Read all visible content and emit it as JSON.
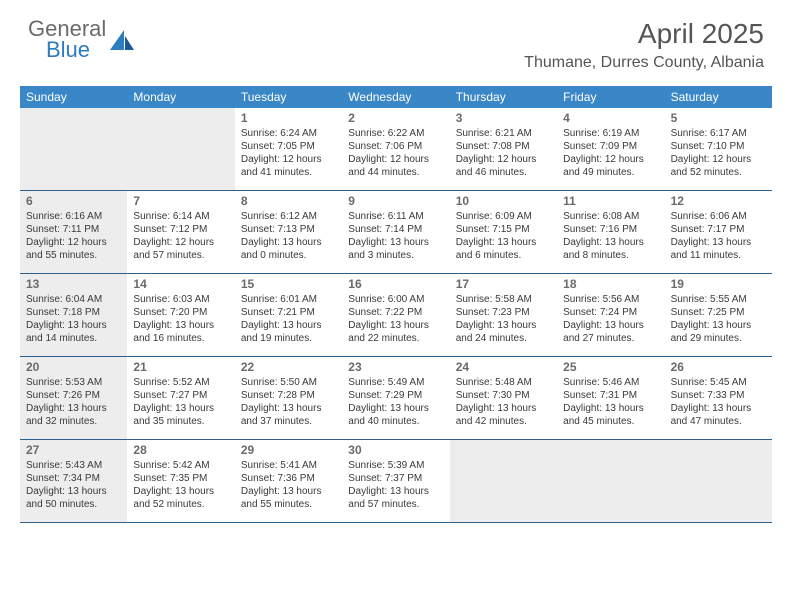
{
  "brand": {
    "general": "General",
    "blue": "Blue"
  },
  "title": "April 2025",
  "location": "Thumane, Durres County, Albania",
  "header_bg": "#3a87c8",
  "rule_color": "#2d5f8e",
  "shaded_bg": "#ededed",
  "weekdays": [
    "Sunday",
    "Monday",
    "Tuesday",
    "Wednesday",
    "Thursday",
    "Friday",
    "Saturday"
  ],
  "weeks": [
    [
      {
        "day": "",
        "shaded": true
      },
      {
        "day": "",
        "shaded": true
      },
      {
        "day": "1",
        "sunrise": "Sunrise: 6:24 AM",
        "sunset": "Sunset: 7:05 PM",
        "d1": "Daylight: 12 hours",
        "d2": "and 41 minutes."
      },
      {
        "day": "2",
        "sunrise": "Sunrise: 6:22 AM",
        "sunset": "Sunset: 7:06 PM",
        "d1": "Daylight: 12 hours",
        "d2": "and 44 minutes."
      },
      {
        "day": "3",
        "sunrise": "Sunrise: 6:21 AM",
        "sunset": "Sunset: 7:08 PM",
        "d1": "Daylight: 12 hours",
        "d2": "and 46 minutes."
      },
      {
        "day": "4",
        "sunrise": "Sunrise: 6:19 AM",
        "sunset": "Sunset: 7:09 PM",
        "d1": "Daylight: 12 hours",
        "d2": "and 49 minutes."
      },
      {
        "day": "5",
        "sunrise": "Sunrise: 6:17 AM",
        "sunset": "Sunset: 7:10 PM",
        "d1": "Daylight: 12 hours",
        "d2": "and 52 minutes."
      }
    ],
    [
      {
        "day": "6",
        "shaded": true,
        "sunrise": "Sunrise: 6:16 AM",
        "sunset": "Sunset: 7:11 PM",
        "d1": "Daylight: 12 hours",
        "d2": "and 55 minutes."
      },
      {
        "day": "7",
        "sunrise": "Sunrise: 6:14 AM",
        "sunset": "Sunset: 7:12 PM",
        "d1": "Daylight: 12 hours",
        "d2": "and 57 minutes."
      },
      {
        "day": "8",
        "sunrise": "Sunrise: 6:12 AM",
        "sunset": "Sunset: 7:13 PM",
        "d1": "Daylight: 13 hours",
        "d2": "and 0 minutes."
      },
      {
        "day": "9",
        "sunrise": "Sunrise: 6:11 AM",
        "sunset": "Sunset: 7:14 PM",
        "d1": "Daylight: 13 hours",
        "d2": "and 3 minutes."
      },
      {
        "day": "10",
        "sunrise": "Sunrise: 6:09 AM",
        "sunset": "Sunset: 7:15 PM",
        "d1": "Daylight: 13 hours",
        "d2": "and 6 minutes."
      },
      {
        "day": "11",
        "sunrise": "Sunrise: 6:08 AM",
        "sunset": "Sunset: 7:16 PM",
        "d1": "Daylight: 13 hours",
        "d2": "and 8 minutes."
      },
      {
        "day": "12",
        "sunrise": "Sunrise: 6:06 AM",
        "sunset": "Sunset: 7:17 PM",
        "d1": "Daylight: 13 hours",
        "d2": "and 11 minutes."
      }
    ],
    [
      {
        "day": "13",
        "shaded": true,
        "sunrise": "Sunrise: 6:04 AM",
        "sunset": "Sunset: 7:18 PM",
        "d1": "Daylight: 13 hours",
        "d2": "and 14 minutes."
      },
      {
        "day": "14",
        "sunrise": "Sunrise: 6:03 AM",
        "sunset": "Sunset: 7:20 PM",
        "d1": "Daylight: 13 hours",
        "d2": "and 16 minutes."
      },
      {
        "day": "15",
        "sunrise": "Sunrise: 6:01 AM",
        "sunset": "Sunset: 7:21 PM",
        "d1": "Daylight: 13 hours",
        "d2": "and 19 minutes."
      },
      {
        "day": "16",
        "sunrise": "Sunrise: 6:00 AM",
        "sunset": "Sunset: 7:22 PM",
        "d1": "Daylight: 13 hours",
        "d2": "and 22 minutes."
      },
      {
        "day": "17",
        "sunrise": "Sunrise: 5:58 AM",
        "sunset": "Sunset: 7:23 PM",
        "d1": "Daylight: 13 hours",
        "d2": "and 24 minutes."
      },
      {
        "day": "18",
        "sunrise": "Sunrise: 5:56 AM",
        "sunset": "Sunset: 7:24 PM",
        "d1": "Daylight: 13 hours",
        "d2": "and 27 minutes."
      },
      {
        "day": "19",
        "sunrise": "Sunrise: 5:55 AM",
        "sunset": "Sunset: 7:25 PM",
        "d1": "Daylight: 13 hours",
        "d2": "and 29 minutes."
      }
    ],
    [
      {
        "day": "20",
        "shaded": true,
        "sunrise": "Sunrise: 5:53 AM",
        "sunset": "Sunset: 7:26 PM",
        "d1": "Daylight: 13 hours",
        "d2": "and 32 minutes."
      },
      {
        "day": "21",
        "sunrise": "Sunrise: 5:52 AM",
        "sunset": "Sunset: 7:27 PM",
        "d1": "Daylight: 13 hours",
        "d2": "and 35 minutes."
      },
      {
        "day": "22",
        "sunrise": "Sunrise: 5:50 AM",
        "sunset": "Sunset: 7:28 PM",
        "d1": "Daylight: 13 hours",
        "d2": "and 37 minutes."
      },
      {
        "day": "23",
        "sunrise": "Sunrise: 5:49 AM",
        "sunset": "Sunset: 7:29 PM",
        "d1": "Daylight: 13 hours",
        "d2": "and 40 minutes."
      },
      {
        "day": "24",
        "sunrise": "Sunrise: 5:48 AM",
        "sunset": "Sunset: 7:30 PM",
        "d1": "Daylight: 13 hours",
        "d2": "and 42 minutes."
      },
      {
        "day": "25",
        "sunrise": "Sunrise: 5:46 AM",
        "sunset": "Sunset: 7:31 PM",
        "d1": "Daylight: 13 hours",
        "d2": "and 45 minutes."
      },
      {
        "day": "26",
        "sunrise": "Sunrise: 5:45 AM",
        "sunset": "Sunset: 7:33 PM",
        "d1": "Daylight: 13 hours",
        "d2": "and 47 minutes."
      }
    ],
    [
      {
        "day": "27",
        "shaded": true,
        "sunrise": "Sunrise: 5:43 AM",
        "sunset": "Sunset: 7:34 PM",
        "d1": "Daylight: 13 hours",
        "d2": "and 50 minutes."
      },
      {
        "day": "28",
        "sunrise": "Sunrise: 5:42 AM",
        "sunset": "Sunset: 7:35 PM",
        "d1": "Daylight: 13 hours",
        "d2": "and 52 minutes."
      },
      {
        "day": "29",
        "sunrise": "Sunrise: 5:41 AM",
        "sunset": "Sunset: 7:36 PM",
        "d1": "Daylight: 13 hours",
        "d2": "and 55 minutes."
      },
      {
        "day": "30",
        "sunrise": "Sunrise: 5:39 AM",
        "sunset": "Sunset: 7:37 PM",
        "d1": "Daylight: 13 hours",
        "d2": "and 57 minutes."
      },
      {
        "day": "",
        "shaded": true
      },
      {
        "day": "",
        "shaded": true
      },
      {
        "day": "",
        "shaded": true
      }
    ]
  ]
}
